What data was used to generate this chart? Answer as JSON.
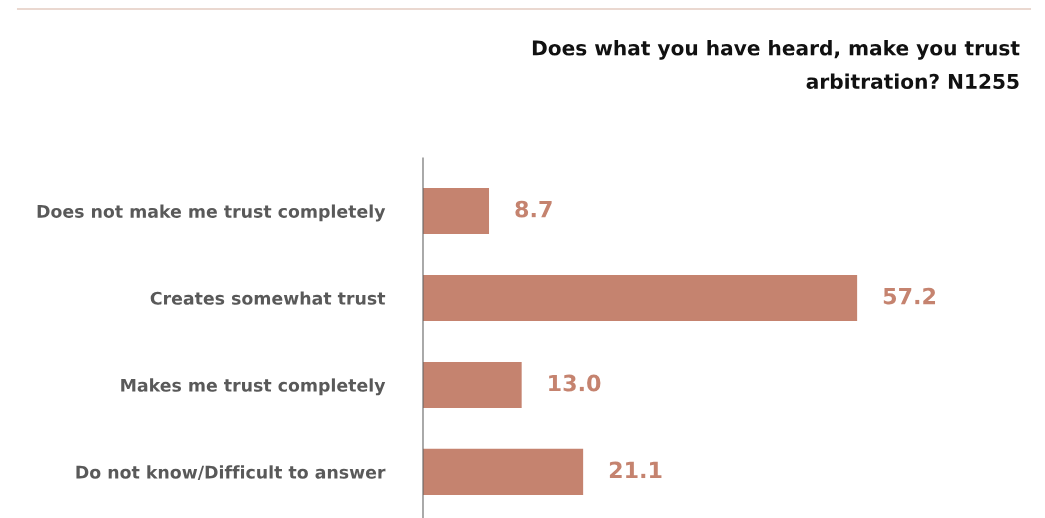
{
  "chart_data": {
    "type": "bar",
    "orientation": "horizontal",
    "title": "Does what you have heard, make you trust\narbitration? N1255",
    "categories": [
      "Does not make me trust completely",
      "Creates somewhat trust",
      "Makes me trust completely",
      "Do not know/Difficult to answer"
    ],
    "values": [
      8.7,
      57.2,
      13.0,
      21.1
    ],
    "value_labels": [
      "8.7",
      "57.2",
      "13.0",
      "21.1"
    ],
    "color": "#c5836f",
    "grid": false,
    "legend": false
  }
}
